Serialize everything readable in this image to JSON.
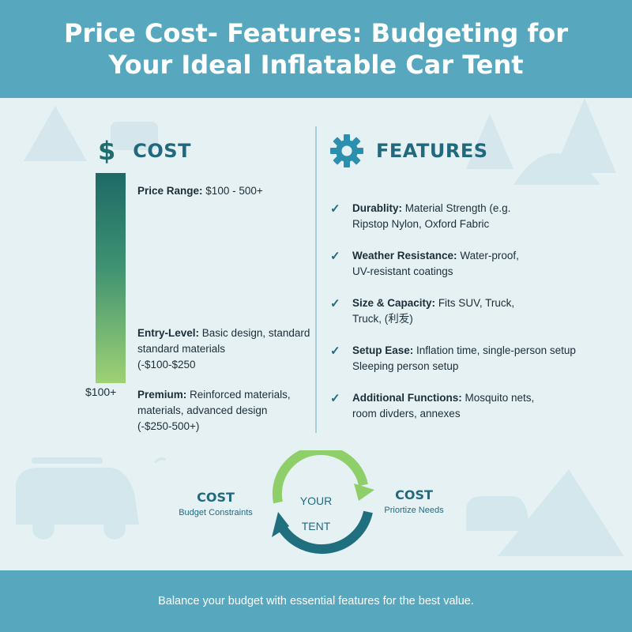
{
  "header": {
    "title_line1": "Price Cost- Features: Budgeting for",
    "title_line2": "Your Ideal Inflatable Car Tent"
  },
  "cost": {
    "icon": "dollar-icon",
    "symbol": "$",
    "heading": "COST",
    "bar_bottom_label": "$100+",
    "price_range": {
      "label": "Price Range:",
      "value": "$100 - 500+"
    },
    "entry": {
      "label": "Entry-Level:",
      "line1": "Basic design, standard",
      "line2": "standard materials",
      "line3": "(-$100-$250"
    },
    "premium": {
      "label": "Premium:",
      "line1": "Reinforced materials,",
      "line2": "materials, advanced design",
      "line3": "(-$250-500+)"
    }
  },
  "features": {
    "icon": "gear-icon",
    "heading": "FEATURES",
    "items": [
      {
        "label": "Durablity:",
        "line1": "Material Strength (e.g.",
        "line2": "Ripstop Nylon, Oxford Fabric"
      },
      {
        "label": "Weather Resistance:",
        "line1": "Water-proof,",
        "line2": "UV-resistant coatings"
      },
      {
        "label": "Size & Capacity:",
        "line1": "Fits SUV, Truck,",
        "line2": "Truck, (利叐)"
      },
      {
        "label": "Setup Ease:",
        "line1": "Inflation time, single-person setup",
        "line2": "Sleeping person setup"
      },
      {
        "label": "Additional Functions:",
        "line1": "Mosquito nets,",
        "line2": "room divders, annexes"
      }
    ]
  },
  "cycle": {
    "center_line1": "YOUR",
    "center_line2": "TENT",
    "left_title": "COST",
    "left_sub": "Budget Constraints",
    "right_title": "COST",
    "right_sub": "Priortize Needs"
  },
  "footer": {
    "text": "Balance your budget with essential features for the best value."
  },
  "colors": {
    "header_bg": "#57a8bf",
    "accent": "#23697e",
    "bar_top": "#1d6a66",
    "bar_bottom": "#9fd174",
    "arrow_green": "#8fcf6a",
    "arrow_teal": "#1f6f7e"
  }
}
